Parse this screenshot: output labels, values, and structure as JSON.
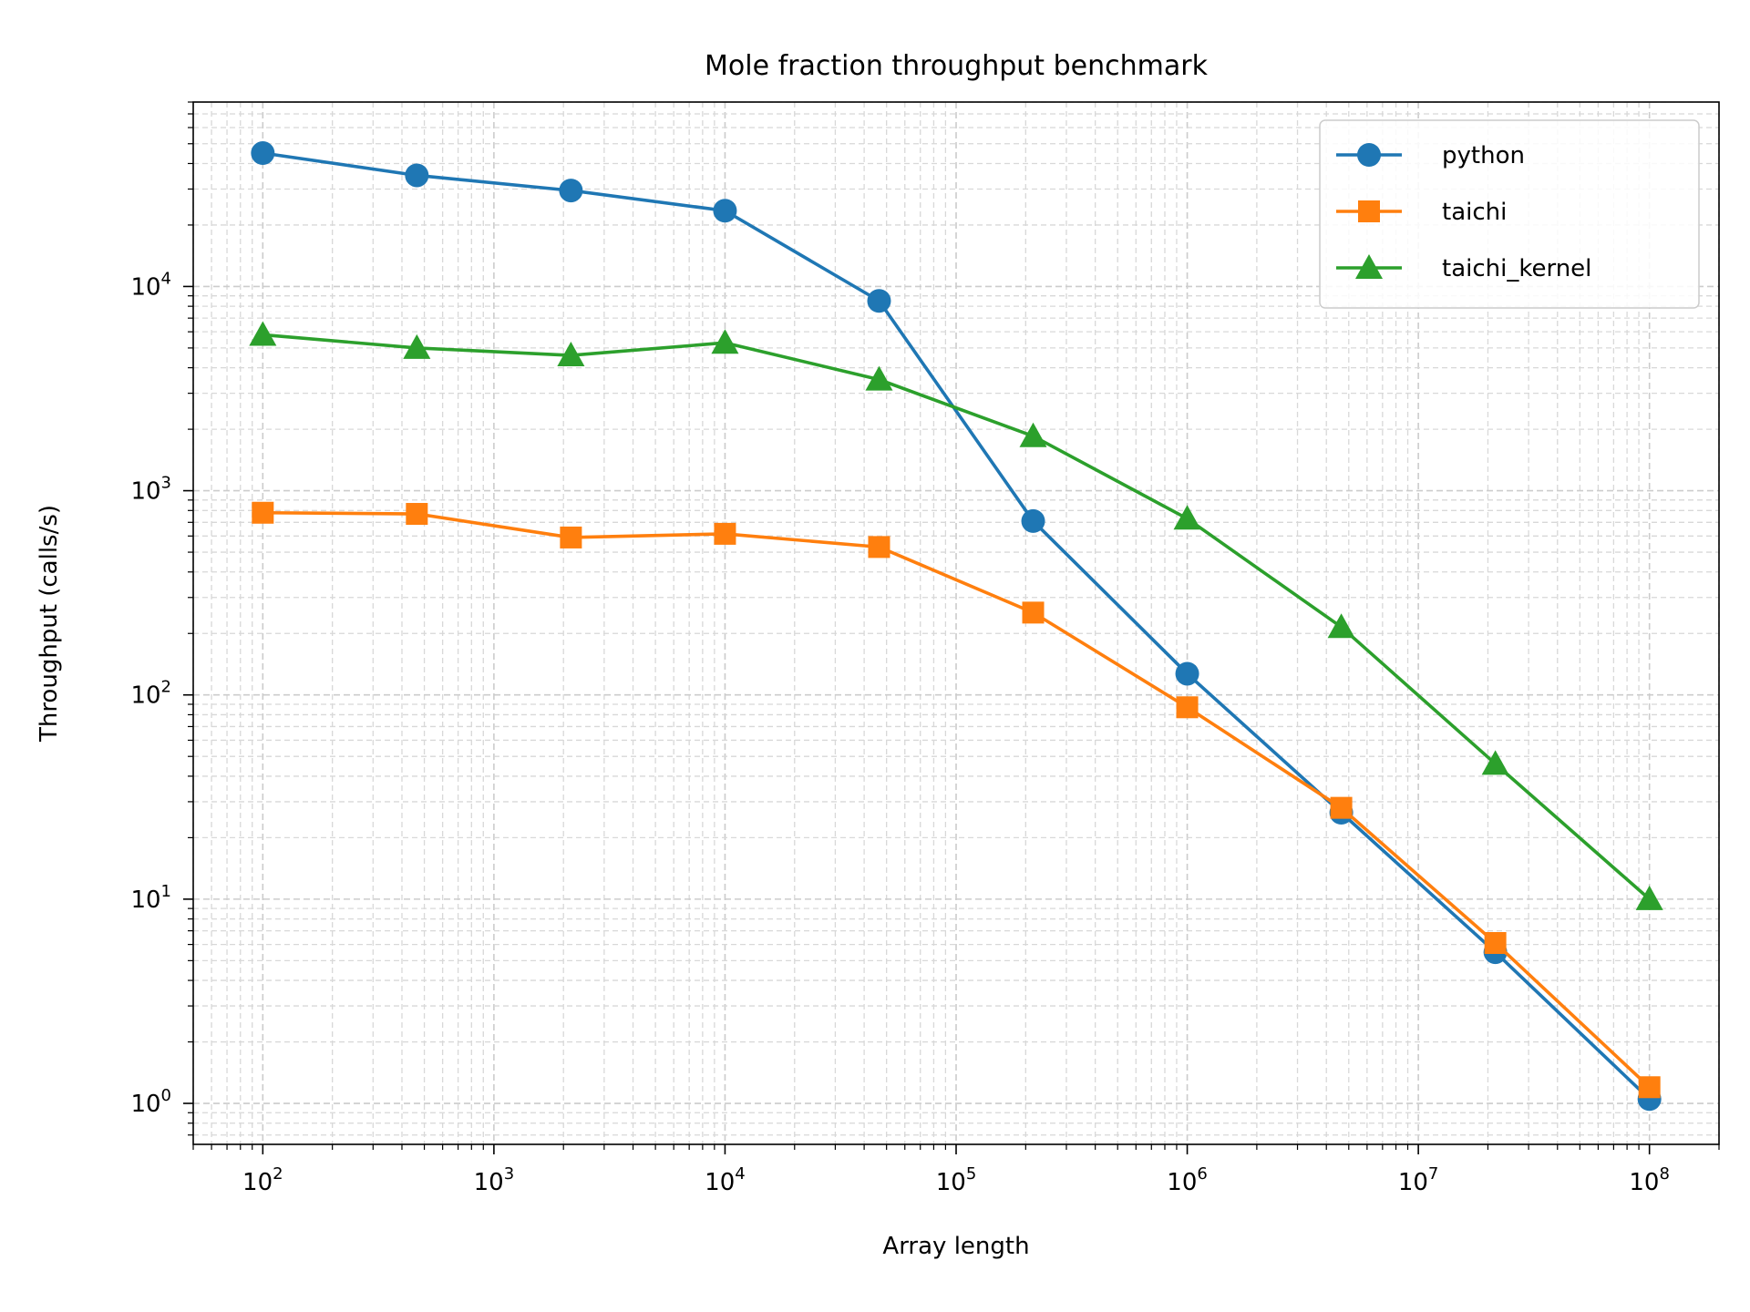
{
  "chart_data": {
    "type": "line",
    "title": "Mole fraction throughput benchmark",
    "xlabel": "Array length",
    "ylabel": "Throughput (calls/s)",
    "x_scale": "log",
    "y_scale": "log",
    "xlim": [
      50,
      200000000
    ],
    "ylim": [
      0.63,
      80000
    ],
    "x_ticks": [
      {
        "value": 100,
        "base": "10",
        "exp": "2"
      },
      {
        "value": 1000,
        "base": "10",
        "exp": "3"
      },
      {
        "value": 10000,
        "base": "10",
        "exp": "4"
      },
      {
        "value": 100000,
        "base": "10",
        "exp": "5"
      },
      {
        "value": 1000000,
        "base": "10",
        "exp": "6"
      },
      {
        "value": 10000000,
        "base": "10",
        "exp": "7"
      },
      {
        "value": 100000000,
        "base": "10",
        "exp": "8"
      }
    ],
    "y_ticks": [
      {
        "value": 1,
        "base": "10",
        "exp": "0"
      },
      {
        "value": 10,
        "base": "10",
        "exp": "1"
      },
      {
        "value": 100,
        "base": "10",
        "exp": "2"
      },
      {
        "value": 1000,
        "base": "10",
        "exp": "3"
      },
      {
        "value": 10000,
        "base": "10",
        "exp": "4"
      }
    ],
    "grid": true,
    "legend_position": "top-right",
    "x": [
      100,
      464,
      2154,
      10000,
      46416,
      215443,
      1000000,
      4641589,
      21544347,
      100000000
    ],
    "series": [
      {
        "name": "python",
        "color": "#1f77b4",
        "marker": "circle",
        "values": [
          45000,
          35000,
          29500,
          23500,
          8500,
          710,
          127,
          26.5,
          5.5,
          1.05
        ]
      },
      {
        "name": "taichi",
        "color": "#ff7f0e",
        "marker": "square",
        "values": [
          780,
          770,
          590,
          615,
          530,
          253,
          87,
          28,
          6.1,
          1.2
        ]
      },
      {
        "name": "taichi_kernel",
        "color": "#2ca02c",
        "marker": "triangle",
        "values": [
          5800,
          5000,
          4600,
          5300,
          3500,
          1850,
          730,
          215,
          46,
          10
        ]
      }
    ]
  }
}
